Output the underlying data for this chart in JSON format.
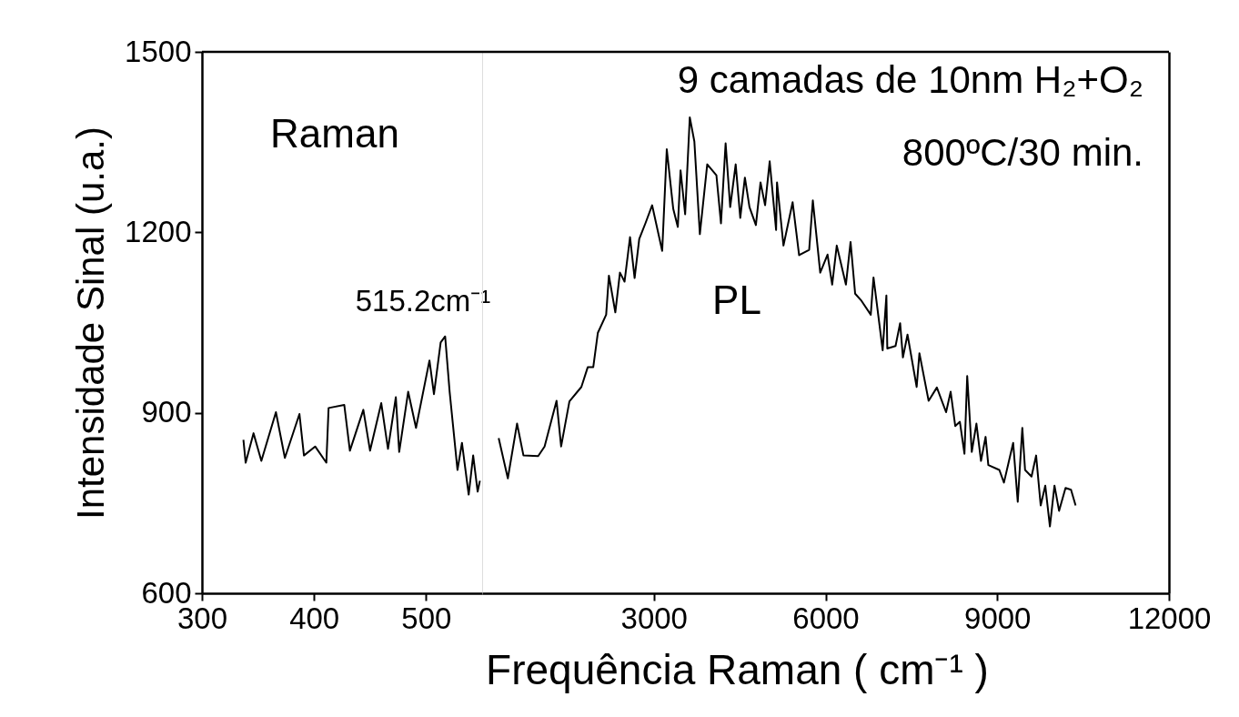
{
  "chart_data": [
    {
      "type": "line",
      "ylabel": "Intensidade Sinal (u.a.)",
      "xlim": [
        300,
        550
      ],
      "xticks": [
        300,
        400,
        500
      ],
      "ylim": [
        600,
        1500
      ],
      "yticks": [
        600,
        900,
        1200,
        1500
      ],
      "grid": false,
      "line_style": "solid",
      "marker": "none",
      "series": [
        {
          "color": "#000000",
          "x": [
            337,
            339,
            346,
            353,
            366,
            374,
            387,
            391,
            401,
            411,
            413,
            427,
            432,
            444,
            450,
            460,
            466,
            473,
            476,
            484,
            491,
            503,
            507,
            513,
            517,
            521,
            528,
            532,
            538,
            542,
            546,
            548
          ],
          "values": [
            855,
            817,
            866,
            820,
            901,
            825,
            898,
            829,
            844,
            817,
            908,
            913,
            837,
            905,
            837,
            916,
            840,
            926,
            835,
            935,
            875,
            987,
            931,
            1017,
            1027,
            935,
            805,
            850,
            764,
            829,
            769,
            787
          ]
        }
      ],
      "annotations": [
        "Raman",
        "515.2cm⁻¹"
      ]
    },
    {
      "type": "line",
      "title": "9 camadas de 10nm H₂+O₂",
      "subtitle": "800ºC/30 min.",
      "xlabel": "Frequência Raman ( cm⁻¹ )",
      "xlim": [
        0,
        12000
      ],
      "xticks": [
        3000,
        6000,
        9000,
        12000
      ],
      "ylim": [
        600,
        1500
      ],
      "yticks": [
        600,
        900,
        1200,
        1500
      ],
      "tick_labels": "x",
      "grid": false,
      "line_style": "solid",
      "marker": "none",
      "series": [
        {
          "color": "#000000",
          "x": [
            289,
            449,
            610,
            722,
            979,
            1091,
            1300,
            1380,
            1525,
            1734,
            1846,
            1942,
            2022,
            2167,
            2215,
            2327,
            2408,
            2488,
            2584,
            2664,
            2745,
            2857,
            2970,
            3146,
            3226,
            3339,
            3419,
            3467,
            3547,
            3628,
            3708,
            3804,
            3933,
            4093,
            4173,
            4254,
            4334,
            4430,
            4510,
            4591,
            4671,
            4783,
            4864,
            4944,
            5024,
            5136,
            5152,
            5265,
            5425,
            5538,
            5714,
            5778,
            5907,
            6035,
            6116,
            6196,
            6356,
            6437,
            6517,
            6629,
            6790,
            6838,
            6998,
            7063,
            7079,
            7223,
            7303,
            7352,
            7432,
            7592,
            7640,
            7801,
            7945,
            8106,
            8186,
            8266,
            8347,
            8427,
            8475,
            8555,
            8636,
            8716,
            8796,
            8844,
            9037,
            9117,
            9278,
            9358,
            9438,
            9486,
            9599,
            9679,
            9759,
            9839,
            9920,
            10000,
            10080,
            10193,
            10289,
            10369
          ],
          "values": [
            858,
            791,
            882,
            829,
            828,
            844,
            920,
            844,
            919,
            943,
            976,
            976,
            1033,
            1063,
            1128,
            1067,
            1133,
            1118,
            1192,
            1124,
            1189,
            1216,
            1245,
            1169,
            1338,
            1239,
            1209,
            1303,
            1230,
            1391,
            1351,
            1197,
            1313,
            1295,
            1215,
            1348,
            1242,
            1313,
            1224,
            1291,
            1242,
            1212,
            1283,
            1245,
            1318,
            1204,
            1283,
            1178,
            1250,
            1162,
            1171,
            1253,
            1133,
            1163,
            1113,
            1178,
            1113,
            1184,
            1098,
            1086,
            1063,
            1125,
            1004,
            1095,
            1007,
            1011,
            1049,
            992,
            1030,
            943,
            999,
            920,
            942,
            901,
            935,
            878,
            885,
            832,
            961,
            835,
            882,
            820,
            860,
            813,
            805,
            784,
            850,
            752,
            875,
            805,
            794,
            829,
            746,
            779,
            711,
            779,
            737,
            775,
            772,
            746
          ]
        }
      ],
      "annotations": [
        "PL"
      ]
    }
  ]
}
